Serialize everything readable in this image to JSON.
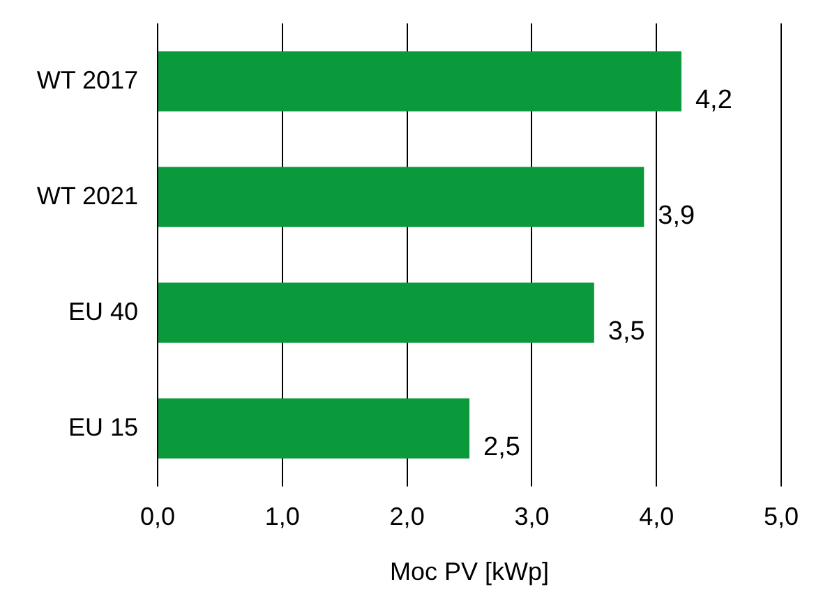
{
  "chart_data": {
    "type": "bar",
    "orientation": "horizontal",
    "xlabel": "Moc PV [kWp]",
    "categories": [
      "WT 2017",
      "WT 2021",
      "EU 40",
      "EU 15"
    ],
    "values": [
      4.2,
      3.9,
      3.5,
      2.5
    ],
    "color": "#0a9a3c",
    "value_labels": [
      "4,2",
      "3,9",
      "3,5",
      "2,5"
    ],
    "xlim": [
      0,
      5
    ],
    "xticks": [
      {
        "value": 0,
        "label": "0,0"
      },
      {
        "value": 1,
        "label": "1,0"
      },
      {
        "value": 2,
        "label": "2,0"
      },
      {
        "value": 3,
        "label": "3,0"
      },
      {
        "value": 4,
        "label": "4,0"
      },
      {
        "value": 5,
        "label": "5,0"
      }
    ],
    "grid": "x",
    "legend": false
  }
}
